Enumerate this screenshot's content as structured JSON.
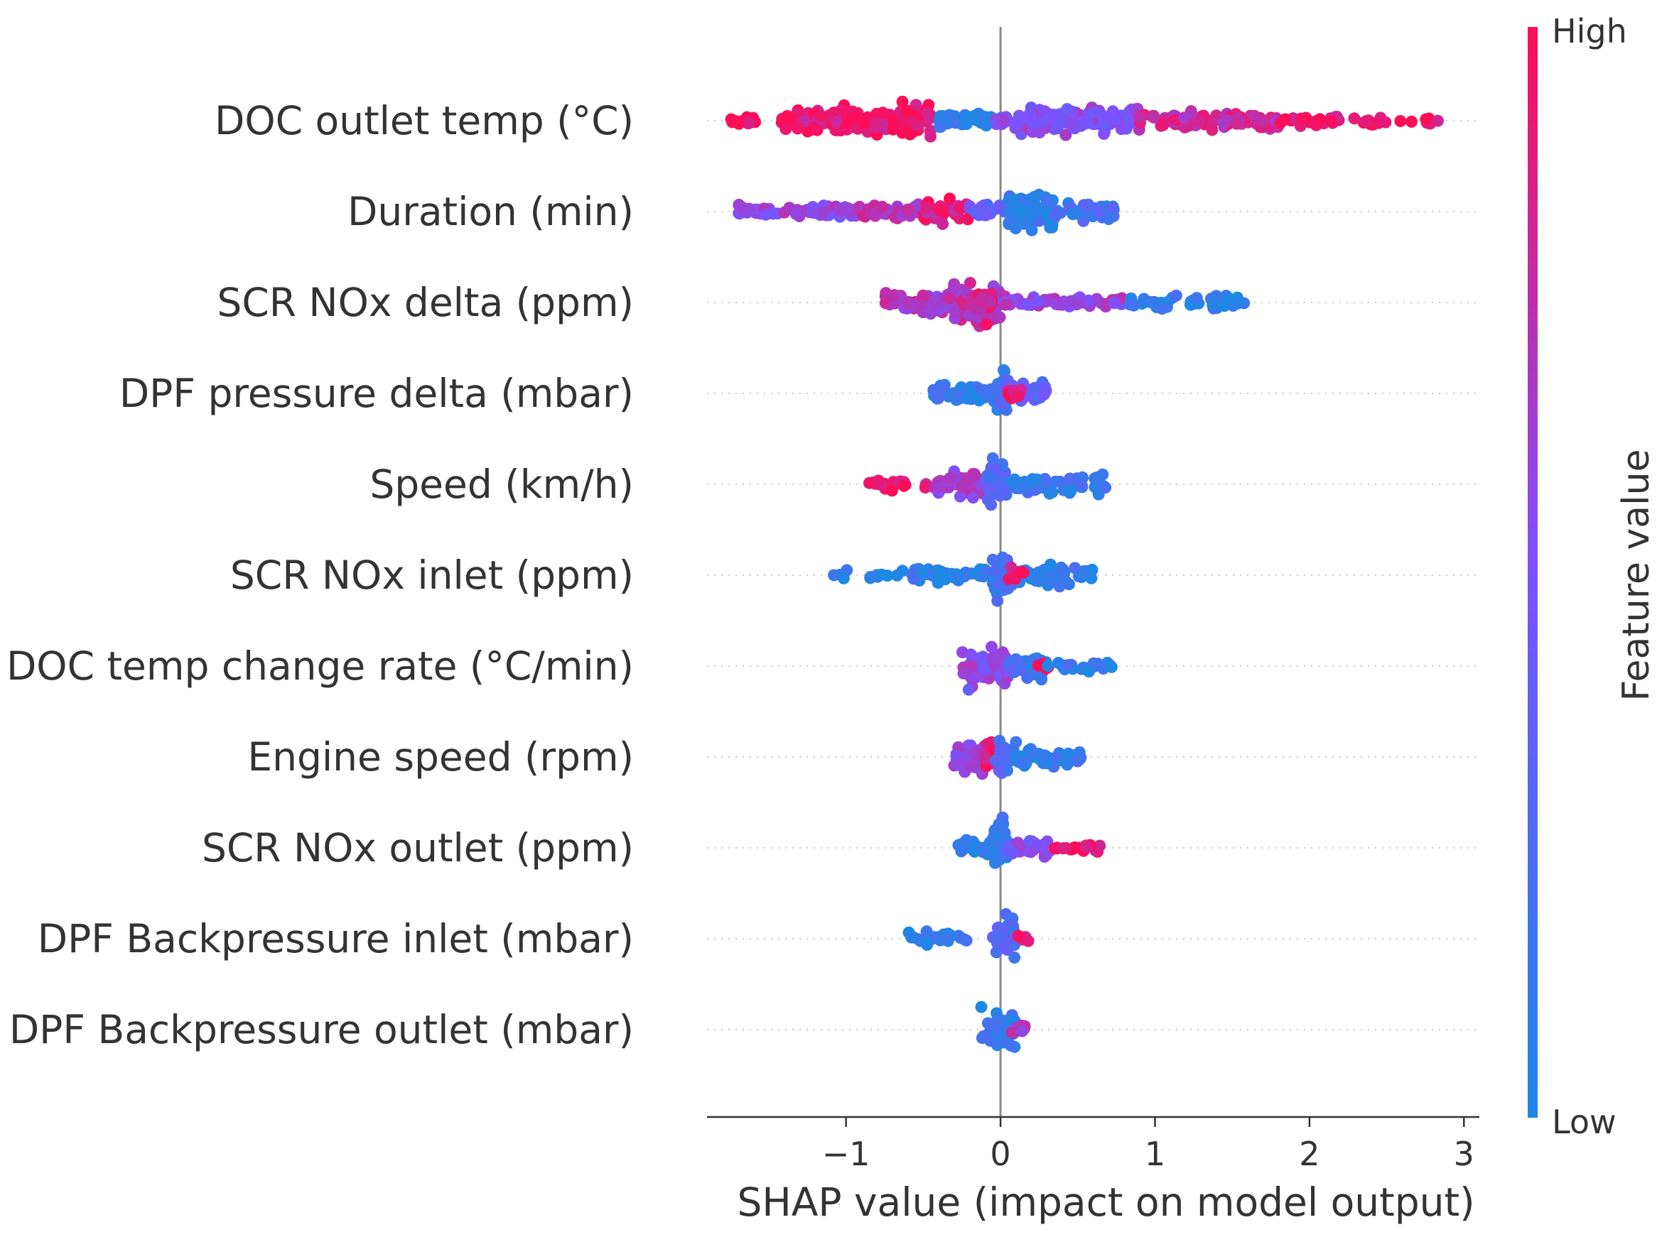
{
  "chart_data": {
    "type": "scatter",
    "subtype": "shap-beeswarm-summary",
    "xlabel": "SHAP value (impact on model output)",
    "xlim": [
      -1.9,
      3.1
    ],
    "xticks": [
      -1,
      0,
      1,
      2,
      3
    ],
    "xtick_labels": [
      "−1",
      "0",
      "1",
      "2",
      "3"
    ],
    "colorbar": {
      "title": "Feature value",
      "high_label": "High",
      "low_label": "Low",
      "high_color": "#ff0d57",
      "low_color": "#1e88e5"
    },
    "zero_line_color": "#888888",
    "features": [
      {
        "name": "DOC outlet temp (°C)",
        "clusters": [
          {
            "lo": -1.75,
            "hi": -1.4,
            "n": 14,
            "c": 0.95,
            "s": 0.35
          },
          {
            "lo": -1.4,
            "hi": -0.7,
            "n": 110,
            "c": 0.92,
            "s": 1.0
          },
          {
            "lo": -0.7,
            "hi": -0.45,
            "n": 60,
            "c": 0.95,
            "s": 1.3
          },
          {
            "lo": -0.4,
            "hi": -0.05,
            "n": 50,
            "c": 0.05,
            "s": 0.5
          },
          {
            "lo": -0.05,
            "hi": 0.05,
            "n": 12,
            "c": 0.5,
            "s": 0.3
          },
          {
            "lo": 0.0,
            "hi": 0.9,
            "n": 130,
            "c": 0.55,
            "s": 0.9
          },
          {
            "lo": 0.9,
            "hi": 1.8,
            "n": 90,
            "c": 0.8,
            "s": 0.6
          },
          {
            "lo": 1.8,
            "hi": 2.9,
            "n": 45,
            "c": 0.95,
            "s": 0.35
          }
        ]
      },
      {
        "name": "Duration (min)",
        "clusters": [
          {
            "lo": -1.7,
            "hi": -0.9,
            "n": 60,
            "c": 0.6,
            "s": 0.4
          },
          {
            "lo": -0.9,
            "hi": -0.5,
            "n": 40,
            "c": 0.75,
            "s": 0.5
          },
          {
            "lo": -0.5,
            "hi": -0.2,
            "n": 35,
            "c": 0.85,
            "s": 0.9
          },
          {
            "lo": -0.2,
            "hi": 0.05,
            "n": 20,
            "c": 0.4,
            "s": 0.5
          },
          {
            "lo": 0.05,
            "hi": 0.35,
            "n": 90,
            "c": 0.1,
            "s": 1.3
          },
          {
            "lo": 0.35,
            "hi": 0.75,
            "n": 40,
            "c": 0.2,
            "s": 0.6
          }
        ]
      },
      {
        "name": "SCR NOx delta (ppm)",
        "clusters": [
          {
            "lo": -0.75,
            "hi": -0.35,
            "n": 50,
            "c": 0.7,
            "s": 0.7
          },
          {
            "lo": -0.35,
            "hi": 0.0,
            "n": 110,
            "c": 0.72,
            "s": 1.4
          },
          {
            "lo": -0.15,
            "hi": -0.05,
            "n": 20,
            "c": 0.85,
            "s": 1.3
          },
          {
            "lo": 0.0,
            "hi": 0.8,
            "n": 55,
            "c": 0.6,
            "s": 0.35
          },
          {
            "lo": 0.8,
            "hi": 1.6,
            "n": 55,
            "c": 0.08,
            "s": 0.5
          }
        ]
      },
      {
        "name": "DPF pressure delta (mbar)",
        "clusters": [
          {
            "lo": -0.45,
            "hi": -0.05,
            "n": 45,
            "c": 0.1,
            "s": 0.5
          },
          {
            "lo": -0.05,
            "hi": 0.05,
            "n": 30,
            "c": 0.15,
            "s": 1.4
          },
          {
            "lo": 0.0,
            "hi": 0.3,
            "n": 40,
            "c": 0.35,
            "s": 0.7
          },
          {
            "lo": 0.05,
            "hi": 0.15,
            "n": 10,
            "c": 0.95,
            "s": 0.4
          }
        ]
      },
      {
        "name": "Speed (km/h)",
        "clusters": [
          {
            "lo": -0.85,
            "hi": -0.45,
            "n": 22,
            "c": 0.9,
            "s": 0.4
          },
          {
            "lo": -0.45,
            "hi": -0.05,
            "n": 50,
            "c": 0.65,
            "s": 0.8
          },
          {
            "lo": -0.1,
            "hi": 0.05,
            "n": 45,
            "c": 0.3,
            "s": 1.4
          },
          {
            "lo": 0.05,
            "hi": 0.7,
            "n": 55,
            "c": 0.15,
            "s": 0.7
          }
        ]
      },
      {
        "name": "SCR NOx inlet (ppm)",
        "clusters": [
          {
            "lo": -1.1,
            "hi": -0.6,
            "n": 12,
            "c": 0.05,
            "s": 0.35
          },
          {
            "lo": -0.6,
            "hi": -0.05,
            "n": 45,
            "c": 0.08,
            "s": 0.45
          },
          {
            "lo": -0.05,
            "hi": 0.05,
            "n": 35,
            "c": 0.2,
            "s": 1.4
          },
          {
            "lo": 0.05,
            "hi": 0.6,
            "n": 60,
            "c": 0.1,
            "s": 0.7
          },
          {
            "lo": 0.05,
            "hi": 0.15,
            "n": 8,
            "c": 0.9,
            "s": 0.4
          }
        ]
      },
      {
        "name": "DOC temp change rate (°C/min)",
        "clusters": [
          {
            "lo": -0.25,
            "hi": 0.05,
            "n": 60,
            "c": 0.55,
            "s": 1.3
          },
          {
            "lo": 0.05,
            "hi": 0.3,
            "n": 40,
            "c": 0.2,
            "s": 0.7
          },
          {
            "lo": 0.2,
            "hi": 0.35,
            "n": 6,
            "c": 0.95,
            "s": 0.3
          },
          {
            "lo": 0.3,
            "hi": 0.72,
            "n": 20,
            "c": 0.1,
            "s": 0.35
          }
        ]
      },
      {
        "name": "Engine speed (rpm)",
        "clusters": [
          {
            "lo": -0.3,
            "hi": -0.05,
            "n": 45,
            "c": 0.65,
            "s": 1.0
          },
          {
            "lo": -0.1,
            "hi": 0.0,
            "n": 15,
            "c": 0.9,
            "s": 1.2
          },
          {
            "lo": -0.05,
            "hi": 0.1,
            "n": 30,
            "c": 0.25,
            "s": 1.4
          },
          {
            "lo": 0.1,
            "hi": 0.52,
            "n": 50,
            "c": 0.12,
            "s": 0.6
          }
        ]
      },
      {
        "name": "SCR NOx outlet (ppm)",
        "clusters": [
          {
            "lo": -0.3,
            "hi": -0.05,
            "n": 25,
            "c": 0.08,
            "s": 0.6
          },
          {
            "lo": -0.05,
            "hi": 0.05,
            "n": 40,
            "c": 0.1,
            "s": 1.6
          },
          {
            "lo": 0.05,
            "hi": 0.35,
            "n": 35,
            "c": 0.5,
            "s": 0.6
          },
          {
            "lo": 0.35,
            "hi": 0.65,
            "n": 18,
            "c": 0.95,
            "s": 0.35
          }
        ]
      },
      {
        "name": "DPF Backpressure inlet (mbar)",
        "clusters": [
          {
            "lo": -0.68,
            "hi": -0.22,
            "n": 28,
            "c": 0.08,
            "s": 0.45
          },
          {
            "lo": -0.05,
            "hi": 0.1,
            "n": 35,
            "c": 0.3,
            "s": 1.3
          },
          {
            "lo": 0.1,
            "hi": 0.18,
            "n": 6,
            "c": 0.85,
            "s": 0.4
          }
        ]
      },
      {
        "name": "DPF Backpressure outlet (mbar)",
        "clusters": [
          {
            "lo": -0.15,
            "hi": 0.1,
            "n": 45,
            "c": 0.1,
            "s": 1.3
          },
          {
            "lo": 0.05,
            "hi": 0.18,
            "n": 10,
            "c": 0.7,
            "s": 0.5
          }
        ]
      }
    ]
  }
}
